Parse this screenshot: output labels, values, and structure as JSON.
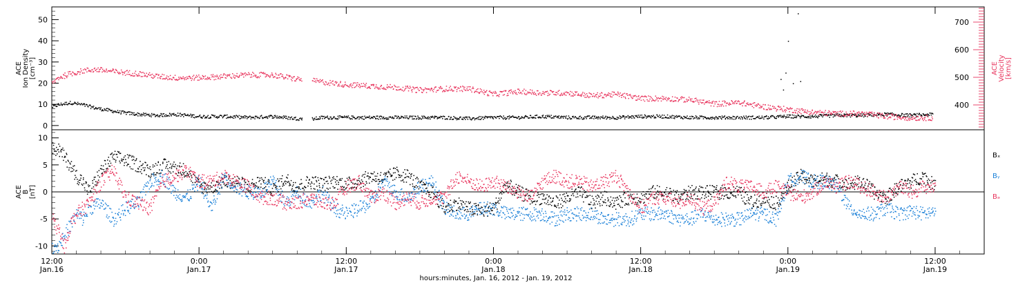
{
  "colors": {
    "black": "#000000",
    "pink": "#e8335c",
    "blue": "#1a80d8"
  },
  "xaxis": {
    "title": "hours:minutes, Jan. 16, 2012 - Jan. 19, 2012",
    "range_hours": [
      0,
      76
    ],
    "ticks": [
      {
        "t": 0,
        "time": "12:00",
        "date": "Jan.16"
      },
      {
        "t": 12,
        "time": "0:00",
        "date": "Jan.17"
      },
      {
        "t": 24,
        "time": "12:00",
        "date": "Jan.17"
      },
      {
        "t": 36,
        "time": "0:00",
        "date": "Jan.18"
      },
      {
        "t": 48,
        "time": "12:00",
        "date": "Jan.18"
      },
      {
        "t": 60,
        "time": "0:00",
        "date": "Jan.19"
      },
      {
        "t": 72,
        "time": "12:00",
        "date": "Jan.19"
      }
    ]
  },
  "chart_data": [
    {
      "type": "scatter",
      "panel": "top",
      "left_axis": {
        "label_lines": [
          "ACE",
          "Ion Density",
          "[cm⁻³]"
        ],
        "range": [
          -2,
          56
        ],
        "ticks": [
          0,
          10,
          20,
          30,
          40,
          50
        ],
        "tick_labels": [
          "0",
          "10",
          "20",
          "30",
          "40",
          "50"
        ]
      },
      "right_axis": {
        "label_lines": [
          "ACE",
          "Velocity",
          "[km/s]"
        ],
        "range": [
          310,
          755
        ],
        "ticks": [
          400,
          500,
          600,
          700
        ],
        "tick_labels": [
          "400",
          "500",
          "600",
          "700"
        ]
      },
      "series": [
        {
          "axis": "left",
          "color": "black",
          "x": [
            0,
            0.5,
            1.5,
            2.5,
            3.5,
            4.5,
            5.5,
            7,
            8.5,
            10,
            12,
            14,
            16,
            18,
            20,
            21,
            22,
            24,
            26,
            28,
            30,
            32,
            34,
            36,
            38,
            40,
            42,
            44,
            46,
            48,
            50,
            52,
            54,
            56,
            58,
            60,
            62,
            64,
            66,
            68,
            70,
            71.8
          ],
          "y": [
            9,
            10,
            11,
            10,
            8.5,
            7.5,
            6.5,
            5.5,
            5,
            5.5,
            4.5,
            4.5,
            4,
            4.5,
            3.5,
            3,
            4,
            4,
            4,
            4,
            4,
            4,
            3.5,
            4,
            4,
            4.5,
            4,
            4,
            4,
            4.5,
            4.5,
            4,
            4,
            4,
            4,
            4.5,
            4.5,
            5,
            5,
            5.5,
            5,
            5.5
          ]
        },
        {
          "axis": "right",
          "color": "pink",
          "x": [
            0,
            0.5,
            1.5,
            2.5,
            3.5,
            4.5,
            5.5,
            7,
            8.5,
            10,
            12,
            14,
            16,
            18,
            20,
            21,
            22,
            24,
            26,
            28,
            30,
            32,
            34,
            36,
            38,
            40,
            42,
            44,
            46,
            48,
            50,
            52,
            54,
            56,
            58,
            60,
            62,
            64,
            66,
            68,
            70,
            71.8
          ],
          "y": [
            480,
            500,
            515,
            525,
            530,
            525,
            520,
            515,
            505,
            500,
            500,
            505,
            510,
            510,
            495,
            490,
            485,
            475,
            470,
            465,
            455,
            460,
            460,
            440,
            450,
            445,
            445,
            435,
            440,
            425,
            425,
            420,
            405,
            410,
            395,
            385,
            375,
            370,
            370,
            360,
            355,
            355
          ]
        }
      ]
    },
    {
      "type": "scatter",
      "panel": "bottom",
      "left_axis": {
        "label_lines": [
          "ACE",
          "B",
          "[nT]"
        ],
        "range": [
          -11.5,
          11.5
        ],
        "ticks": [
          -10,
          -5,
          0,
          5,
          10
        ],
        "tick_labels": [
          "-10",
          "-5",
          "0",
          "5",
          "10"
        ]
      },
      "zero_line": true,
      "series": [
        {
          "name": "Bₓ",
          "color": "black",
          "x": [
            0,
            0.5,
            1,
            1.5,
            2,
            2.5,
            3,
            4,
            5,
            6,
            7,
            8,
            9,
            10,
            11,
            12,
            13,
            14,
            15,
            16,
            17,
            18,
            19,
            20,
            21,
            22,
            23,
            24,
            25,
            26,
            27,
            28,
            29,
            30,
            31,
            32,
            33,
            34,
            35,
            36,
            37,
            38,
            39,
            40,
            41,
            42,
            43,
            44,
            45,
            46,
            47,
            48,
            49,
            50,
            51,
            52,
            53,
            54,
            55,
            56,
            57,
            58,
            59,
            60,
            61,
            62,
            63,
            64,
            65,
            66,
            67,
            68,
            69,
            70,
            71,
            72
          ],
          "y": [
            8,
            8,
            6.5,
            5,
            3,
            2,
            0,
            4,
            6.5,
            6,
            5,
            4,
            5,
            4.5,
            4,
            1,
            1,
            2,
            2,
            1,
            2,
            0.5,
            2.5,
            1,
            2,
            1.5,
            2,
            1.5,
            2,
            3,
            2.5,
            3.5,
            3,
            1,
            0,
            -3,
            -2,
            -3,
            -3.5,
            -3,
            1.5,
            0,
            -1,
            -1,
            -2,
            -1,
            0,
            -2,
            -1,
            -2,
            -1,
            -1,
            0,
            0,
            -1,
            0,
            0,
            0,
            0,
            0,
            -2,
            -1,
            -2,
            1,
            3,
            2,
            2.5,
            2,
            1.5,
            2,
            0,
            -1,
            1,
            2,
            3,
            1
          ]
        },
        {
          "name": "Bᵧ",
          "color": "blue",
          "x": [
            0,
            0.5,
            1,
            1.5,
            2,
            2.5,
            3,
            4,
            5,
            6,
            7,
            8,
            9,
            10,
            11,
            12,
            13,
            14,
            15,
            16,
            17,
            18,
            19,
            20,
            21,
            22,
            23,
            24,
            25,
            26,
            27,
            28,
            29,
            30,
            31,
            32,
            33,
            34,
            35,
            36,
            37,
            38,
            39,
            40,
            41,
            42,
            43,
            44,
            45,
            46,
            47,
            48,
            49,
            50,
            51,
            52,
            53,
            54,
            55,
            56,
            57,
            58,
            59,
            60,
            61,
            62,
            63,
            64,
            65,
            66,
            67,
            68,
            69,
            70,
            71,
            72
          ],
          "y": [
            -10,
            -10,
            -8,
            -6,
            -4,
            -5,
            -3,
            -2,
            -5,
            -3,
            -2,
            2,
            3,
            0,
            -1,
            2,
            -3,
            3,
            1,
            0,
            0,
            2,
            -2,
            0,
            -2,
            0,
            -3,
            -4,
            -3,
            -2,
            2,
            0,
            -1,
            1,
            2,
            -3,
            -4,
            -4,
            -3,
            -3,
            -4,
            -4,
            -4,
            -4,
            -5,
            -4,
            -4,
            -4,
            -5,
            -5,
            -5,
            -4,
            -4,
            -4,
            -5,
            -5,
            -4,
            -5,
            -5,
            -5,
            -4,
            -4,
            -5,
            2,
            3,
            2,
            2,
            1,
            -3,
            -4,
            -4,
            -3,
            -4,
            -3.5,
            -4,
            -3.5
          ]
        },
        {
          "name": "Bₔ",
          "color": "pink",
          "x": [
            0,
            0.5,
            1,
            1.5,
            2,
            2.5,
            3,
            4,
            5,
            6,
            7,
            8,
            9,
            10,
            11,
            12,
            13,
            14,
            15,
            16,
            17,
            18,
            19,
            20,
            21,
            22,
            23,
            24,
            25,
            26,
            27,
            28,
            29,
            30,
            31,
            32,
            33,
            34,
            35,
            36,
            37,
            38,
            39,
            40,
            41,
            42,
            43,
            44,
            45,
            46,
            47,
            48,
            49,
            50,
            51,
            52,
            53,
            54,
            55,
            56,
            57,
            58,
            59,
            60,
            61,
            62,
            63,
            64,
            65,
            66,
            67,
            68,
            69,
            70,
            71,
            72
          ],
          "y": [
            -5,
            -7,
            -10,
            -6,
            -4,
            -3,
            -2,
            2,
            4,
            -1,
            -2,
            -3,
            2,
            3,
            4,
            2,
            2,
            3,
            2,
            1,
            -1,
            -1,
            -2,
            -2,
            -1,
            -2,
            -2,
            1,
            2,
            -1,
            0,
            -2,
            -1,
            -2,
            -1,
            -1,
            3,
            2,
            1,
            2,
            1,
            0,
            -1,
            2,
            3,
            2,
            2,
            1,
            2,
            3,
            0,
            -3,
            -1,
            -1,
            -2,
            -1,
            -3,
            -2,
            2,
            1,
            1,
            0,
            1,
            0,
            -1,
            0,
            2,
            1,
            2,
            1,
            0,
            -1,
            1,
            0,
            1,
            1
          ]
        }
      ]
    }
  ]
}
